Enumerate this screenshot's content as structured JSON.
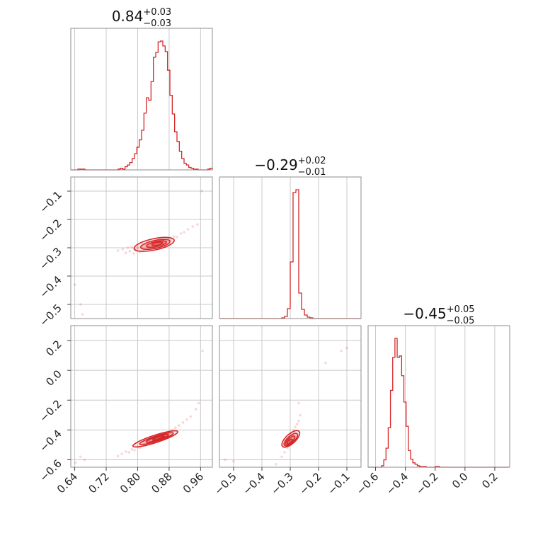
{
  "colors": {
    "series": "#d62728",
    "grid": "#c8c8c8",
    "frame": "#8c8c8c"
  },
  "titles": [
    {
      "base": "0.84",
      "plus": "+0.03",
      "minus": "−0.03"
    },
    {
      "base": "−0.29",
      "plus": "+0.02",
      "minus": "−0.01"
    },
    {
      "base": "−0.45",
      "plus": "+0.05",
      "minus": "−0.05"
    }
  ],
  "chart_data": {
    "type": "corner",
    "params": [
      {
        "range": [
          0.63,
          0.99
        ],
        "ticks": [
          0.64,
          0.72,
          0.8,
          0.88,
          0.96
        ],
        "tick_labels": [
          "0.64",
          "0.72",
          "0.80",
          "0.88",
          "0.96"
        ],
        "median": 0.84
      },
      {
        "range": [
          -0.55,
          -0.05
        ],
        "ticks": [
          -0.5,
          -0.4,
          -0.3,
          -0.2,
          -0.1
        ],
        "tick_labels": [
          "−0.5",
          "−0.4",
          "−0.3",
          "−0.2",
          "−0.1"
        ],
        "median": -0.29
      },
      {
        "range": [
          -0.65,
          0.3
        ],
        "ticks": [
          -0.6,
          -0.4,
          -0.2,
          0.0,
          0.2
        ],
        "tick_labels": [
          "−0.6",
          "−0.4",
          "−0.2",
          "0.0",
          "0.2"
        ],
        "median": -0.45
      }
    ],
    "histograms": [
      {
        "param": 0,
        "bin_edges": [
          0.63,
          0.636,
          0.642,
          0.648,
          0.654,
          0.66,
          0.666,
          0.672,
          0.678,
          0.684,
          0.69,
          0.696,
          0.702,
          0.708,
          0.714,
          0.72,
          0.726,
          0.732,
          0.738,
          0.744,
          0.75,
          0.756,
          0.762,
          0.768,
          0.774,
          0.78,
          0.786,
          0.792,
          0.798,
          0.804,
          0.81,
          0.816,
          0.822,
          0.828,
          0.834,
          0.84,
          0.846,
          0.852,
          0.858,
          0.864,
          0.87,
          0.876,
          0.882,
          0.888,
          0.894,
          0.9,
          0.906,
          0.912,
          0.918,
          0.924,
          0.93,
          0.936,
          0.942,
          0.948,
          0.954,
          0.96,
          0.966,
          0.972,
          0.978,
          0.984,
          0.99
        ],
        "counts": [
          0,
          0,
          0,
          1,
          1,
          1,
          0,
          0,
          0,
          0,
          0,
          0,
          0,
          0,
          0,
          0,
          0,
          0,
          0,
          0,
          1,
          2,
          1,
          4,
          6,
          9,
          14,
          20,
          28,
          37,
          49,
          70,
          89,
          86,
          109,
          139,
          145,
          158,
          159,
          153,
          146,
          123,
          92,
          69,
          47,
          35,
          23,
          14,
          8,
          6,
          3,
          2,
          1,
          1,
          0,
          0,
          0,
          0,
          1,
          2
        ]
      },
      {
        "param": 1,
        "bin_edges": [
          -0.55,
          -0.54,
          -0.53,
          -0.52,
          -0.51,
          -0.5,
          -0.49,
          -0.48,
          -0.47,
          -0.46,
          -0.45,
          -0.44,
          -0.43,
          -0.42,
          -0.41,
          -0.4,
          -0.39,
          -0.38,
          -0.37,
          -0.36,
          -0.35,
          -0.34,
          -0.33,
          -0.32,
          -0.31,
          -0.3,
          -0.29,
          -0.28,
          -0.27,
          -0.26,
          -0.25,
          -0.24,
          -0.23,
          -0.22,
          -0.21,
          -0.2,
          -0.19,
          -0.18,
          -0.17,
          -0.16,
          -0.15,
          -0.14,
          -0.13,
          -0.12,
          -0.11,
          -0.1,
          -0.09,
          -0.08,
          -0.07,
          -0.06,
          -0.05
        ],
        "counts": [
          0,
          0,
          0,
          0,
          0,
          0,
          0,
          0,
          0,
          0,
          0,
          0,
          0,
          0,
          0,
          0,
          0,
          0,
          0,
          0,
          0,
          0,
          1,
          3,
          14,
          80,
          178,
          182,
          36,
          13,
          5,
          2,
          1,
          0,
          0,
          0,
          0,
          0,
          0,
          0,
          0,
          0,
          0,
          0,
          0,
          0,
          0,
          0,
          0,
          0
        ]
      },
      {
        "param": 2,
        "bin_edges": [
          -0.65,
          -0.635,
          -0.62,
          -0.605,
          -0.59,
          -0.575,
          -0.56,
          -0.545,
          -0.53,
          -0.515,
          -0.5,
          -0.485,
          -0.47,
          -0.455,
          -0.44,
          -0.425,
          -0.41,
          -0.395,
          -0.38,
          -0.365,
          -0.35,
          -0.335,
          -0.32,
          -0.305,
          -0.29,
          -0.275,
          -0.26,
          -0.245,
          -0.23,
          -0.215,
          -0.2,
          -0.185,
          -0.17,
          -0.155,
          -0.14,
          -0.125,
          -0.11,
          -0.095,
          -0.08,
          -0.065,
          -0.05,
          -0.035,
          -0.02,
          -0.005,
          0.01,
          0.025,
          0.04,
          0.055,
          0.07,
          0.085,
          0.1,
          0.115,
          0.13,
          0.145,
          0.16,
          0.175,
          0.19,
          0.205,
          0.22,
          0.235,
          0.25,
          0.265,
          0.28,
          0.295
        ],
        "counts": [
          0,
          0,
          0,
          0,
          0,
          0,
          2,
          10,
          26,
          54,
          105,
          150,
          176,
          150,
          152,
          125,
          89,
          56,
          23,
          11,
          6,
          4,
          2,
          1,
          1,
          1,
          0,
          0,
          0,
          0,
          1,
          1,
          0,
          0,
          0,
          0,
          0,
          0,
          0,
          0,
          0,
          0,
          0,
          0,
          0,
          0,
          0,
          0,
          0,
          0,
          0,
          0,
          0,
          0,
          0,
          0,
          0,
          0,
          0,
          0,
          0,
          0,
          0
        ]
      }
    ],
    "pairs": [
      {
        "x_param": 0,
        "y_param": 1,
        "scatter": [
          [
            0.64,
            -0.43
          ],
          [
            0.655,
            -0.5
          ],
          [
            0.66,
            -0.535
          ],
          [
            0.963,
            -0.1
          ],
          [
            0.75,
            -0.31
          ],
          [
            0.762,
            -0.305
          ],
          [
            0.77,
            -0.318
          ],
          [
            0.775,
            -0.3
          ],
          [
            0.78,
            -0.312
          ],
          [
            0.785,
            -0.298
          ],
          [
            0.79,
            -0.32
          ],
          [
            0.792,
            -0.305
          ],
          [
            0.795,
            -0.31
          ],
          [
            0.8,
            -0.3
          ],
          [
            0.805,
            -0.315
          ],
          [
            0.81,
            -0.295
          ],
          [
            0.815,
            -0.305
          ],
          [
            0.82,
            -0.29
          ],
          [
            0.828,
            -0.298
          ],
          [
            0.835,
            -0.285
          ],
          [
            0.842,
            -0.292
          ],
          [
            0.85,
            -0.28
          ],
          [
            0.858,
            -0.285
          ],
          [
            0.865,
            -0.275
          ],
          [
            0.87,
            -0.283
          ],
          [
            0.878,
            -0.268
          ],
          [
            0.885,
            -0.272
          ],
          [
            0.893,
            -0.26
          ],
          [
            0.9,
            -0.262
          ],
          [
            0.91,
            -0.25
          ],
          [
            0.918,
            -0.245
          ],
          [
            0.928,
            -0.235
          ],
          [
            0.94,
            -0.225
          ],
          [
            0.952,
            -0.218
          ]
        ],
        "contours": [
          {
            "cx": 0.842,
            "cy": -0.288,
            "sx": 0.052,
            "sy": 0.02,
            "angle_deg": 12
          },
          {
            "cx": 0.845,
            "cy": -0.288,
            "sx": 0.038,
            "sy": 0.014,
            "angle_deg": 12
          },
          {
            "cx": 0.848,
            "cy": -0.287,
            "sx": 0.026,
            "sy": 0.009,
            "angle_deg": 12
          },
          {
            "cx": 0.85,
            "cy": -0.286,
            "sx": 0.014,
            "sy": 0.005,
            "angle_deg": 12
          }
        ]
      },
      {
        "x_param": 0,
        "y_param": 2,
        "scatter": [
          [
            0.642,
            -0.62
          ],
          [
            0.655,
            -0.58
          ],
          [
            0.665,
            -0.6
          ],
          [
            0.965,
            0.13
          ],
          [
            0.75,
            -0.575
          ],
          [
            0.76,
            -0.56
          ],
          [
            0.77,
            -0.545
          ],
          [
            0.778,
            -0.55
          ],
          [
            0.785,
            -0.53
          ],
          [
            0.792,
            -0.535
          ],
          [
            0.8,
            -0.515
          ],
          [
            0.806,
            -0.52
          ],
          [
            0.814,
            -0.5
          ],
          [
            0.82,
            -0.505
          ],
          [
            0.828,
            -0.485
          ],
          [
            0.835,
            -0.49
          ],
          [
            0.843,
            -0.47
          ],
          [
            0.85,
            -0.465
          ],
          [
            0.858,
            -0.45
          ],
          [
            0.865,
            -0.44
          ],
          [
            0.873,
            -0.43
          ],
          [
            0.88,
            -0.415
          ],
          [
            0.888,
            -0.4
          ],
          [
            0.896,
            -0.385
          ],
          [
            0.905,
            -0.37
          ],
          [
            0.915,
            -0.35
          ],
          [
            0.925,
            -0.33
          ],
          [
            0.935,
            -0.31
          ],
          [
            0.948,
            -0.26
          ],
          [
            0.955,
            -0.22
          ]
        ],
        "contours": [
          {
            "cx": 0.845,
            "cy": -0.46,
            "sx": 0.06,
            "sy": 0.025,
            "angle_deg": 18
          },
          {
            "cx": 0.848,
            "cy": -0.458,
            "sx": 0.045,
            "sy": 0.017,
            "angle_deg": 18
          },
          {
            "cx": 0.85,
            "cy": -0.456,
            "sx": 0.03,
            "sy": 0.011,
            "angle_deg": 18
          },
          {
            "cx": 0.853,
            "cy": -0.454,
            "sx": 0.016,
            "sy": 0.006,
            "angle_deg": 18
          }
        ]
      },
      {
        "x_param": 1,
        "y_param": 2,
        "scatter": [
          [
            -0.5,
            -0.61
          ],
          [
            -0.53,
            -0.6
          ],
          [
            -0.35,
            -0.63
          ],
          [
            -0.33,
            -0.58
          ],
          [
            -0.32,
            -0.55
          ],
          [
            -0.315,
            -0.5
          ],
          [
            -0.31,
            -0.52
          ],
          [
            -0.305,
            -0.46
          ],
          [
            -0.3,
            -0.48
          ],
          [
            -0.298,
            -0.42
          ],
          [
            -0.292,
            -0.44
          ],
          [
            -0.288,
            -0.4
          ],
          [
            -0.282,
            -0.38
          ],
          [
            -0.276,
            -0.36
          ],
          [
            -0.27,
            -0.34
          ],
          [
            -0.265,
            -0.3
          ],
          [
            -0.27,
            -0.22
          ],
          [
            -0.175,
            0.05
          ],
          [
            -0.12,
            0.13
          ],
          [
            -0.1,
            0.15
          ]
        ],
        "contours": [
          {
            "cx": -0.298,
            "cy": -0.46,
            "sx": 0.017,
            "sy": 0.075,
            "angle_deg": -48
          },
          {
            "cx": -0.298,
            "cy": -0.465,
            "sx": 0.012,
            "sy": 0.058,
            "angle_deg": -48
          },
          {
            "cx": -0.3,
            "cy": -0.47,
            "sx": 0.008,
            "sy": 0.04,
            "angle_deg": -48
          },
          {
            "cx": -0.302,
            "cy": -0.478,
            "sx": 0.005,
            "sy": 0.022,
            "angle_deg": -48
          }
        ]
      }
    ]
  }
}
